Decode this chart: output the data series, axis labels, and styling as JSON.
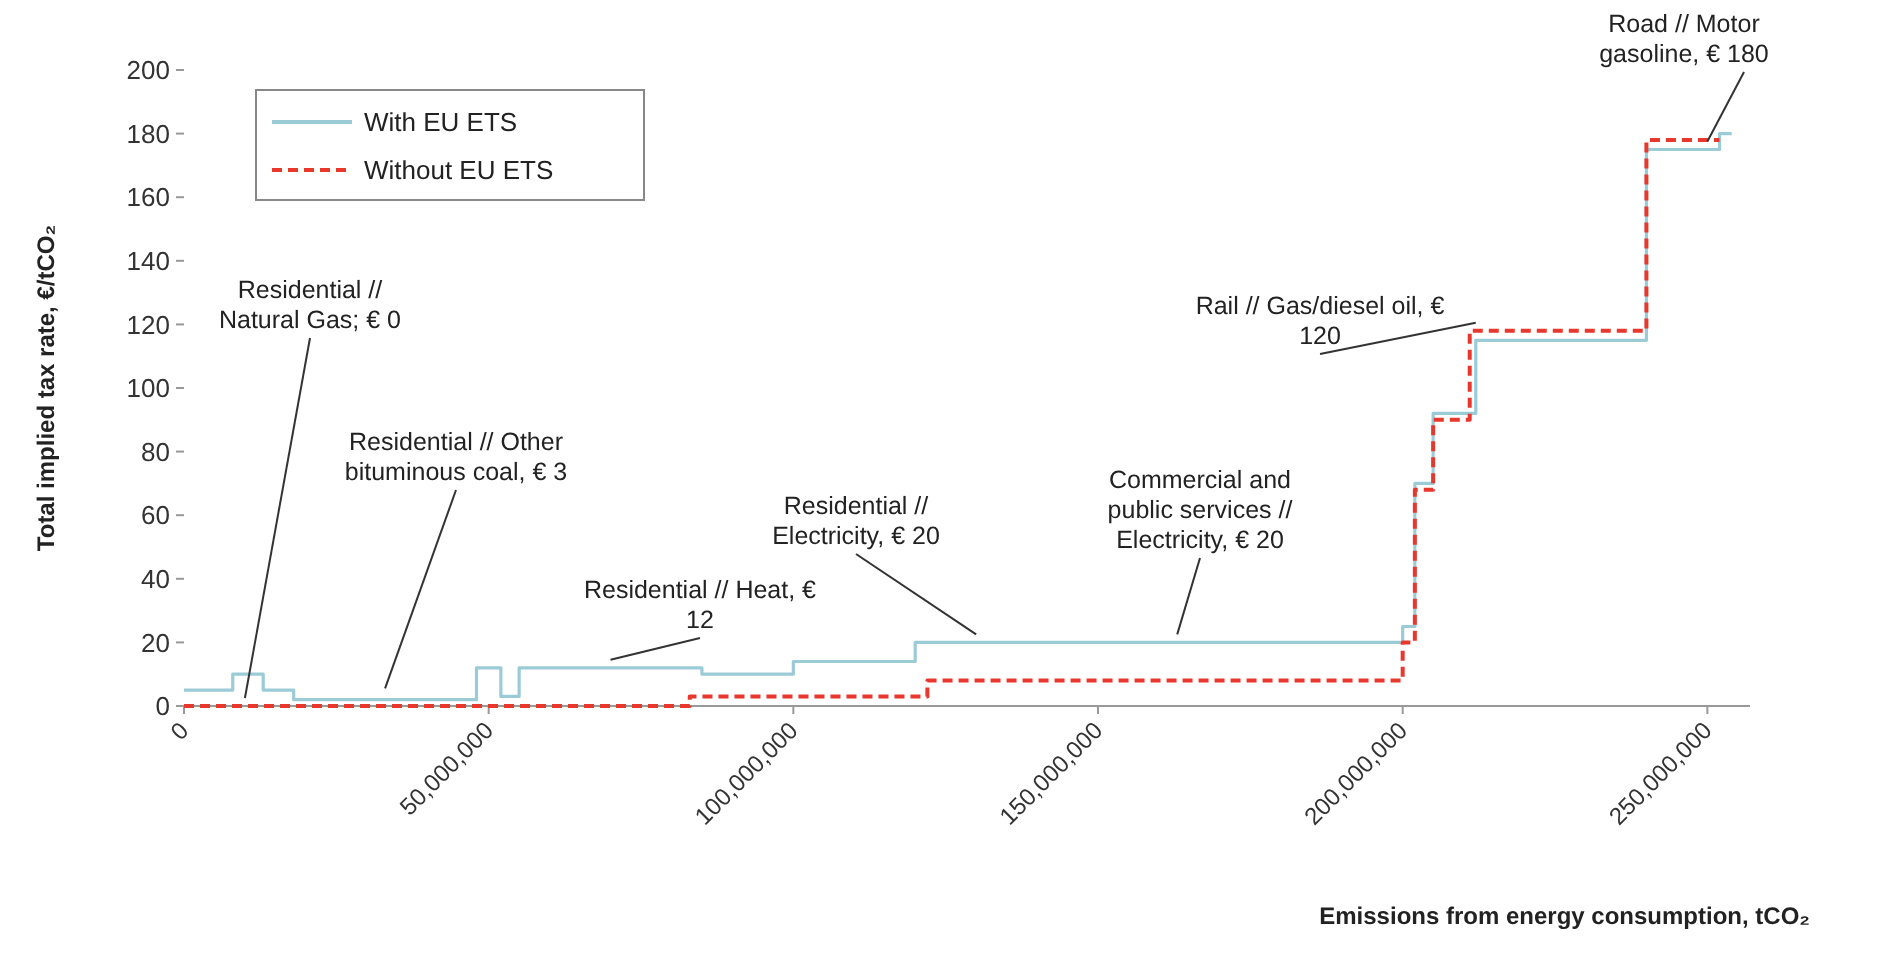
{
  "chart_data": {
    "type": "step",
    "xlabel": "Emissions from energy consumption, tCO₂",
    "ylabel": "Total implied tax rate, €/tCO₂",
    "xlim": [
      0,
      257000000
    ],
    "ylim": [
      0,
      200
    ],
    "xticks": [
      0,
      {
        "value": 50000000,
        "label": "50,000,000"
      },
      {
        "value": 100000000,
        "label": "100,000,000"
      },
      {
        "value": 150000000,
        "label": "150,000,000"
      },
      {
        "value": 200000000,
        "label": "200,000,000"
      },
      {
        "value": 250000000,
        "label": "250,000,000"
      }
    ],
    "yticks": [
      0,
      20,
      40,
      60,
      80,
      100,
      120,
      140,
      160,
      180,
      200
    ],
    "grid": false,
    "legend": "top left",
    "marker": "none",
    "series": [
      {
        "name": "With EU ETS",
        "color": "#9ccbd8",
        "line_style": "solid",
        "x": [
          0,
          8000000,
          13000000,
          18000000,
          48000000,
          52000000,
          55000000,
          85000000,
          100000000,
          120000000,
          200000000,
          202000000,
          205000000,
          212000000,
          240000000,
          252000000,
          254000000
        ],
        "values": [
          5,
          10,
          5,
          2,
          12,
          3,
          12,
          10,
          14,
          20,
          25,
          70,
          92,
          115,
          175,
          180,
          180
        ]
      },
      {
        "name": "Without EU ETS",
        "color": "#e8382d",
        "line_style": "dashed",
        "x": [
          0,
          83000000,
          122000000,
          200000000,
          202000000,
          205000000,
          211000000,
          240000000,
          252000000
        ],
        "values": [
          0,
          3,
          8,
          20,
          68,
          90,
          118,
          178,
          178
        ]
      }
    ],
    "annotations": [
      {
        "text": "Residential // Natural Gas; € 0",
        "x": 10000000,
        "y": 0
      },
      {
        "text": "Residential // Other bituminous coal, € 3",
        "x": 33000000,
        "y": 3
      },
      {
        "text": "Residential // Heat, € 12",
        "x": 70000000,
        "y": 12
      },
      {
        "text": "Residential // Electricity, € 20",
        "x": 130000000,
        "y": 20
      },
      {
        "text": "Commercial and public services // Electricity, € 20",
        "x": 163000000,
        "y": 20
      },
      {
        "text": "Rail // Gas/diesel oil, € 120",
        "x": 212000000,
        "y": 118
      },
      {
        "text": "Road // Motor gasoline, € 180",
        "x": 250000000,
        "y": 175
      }
    ]
  }
}
